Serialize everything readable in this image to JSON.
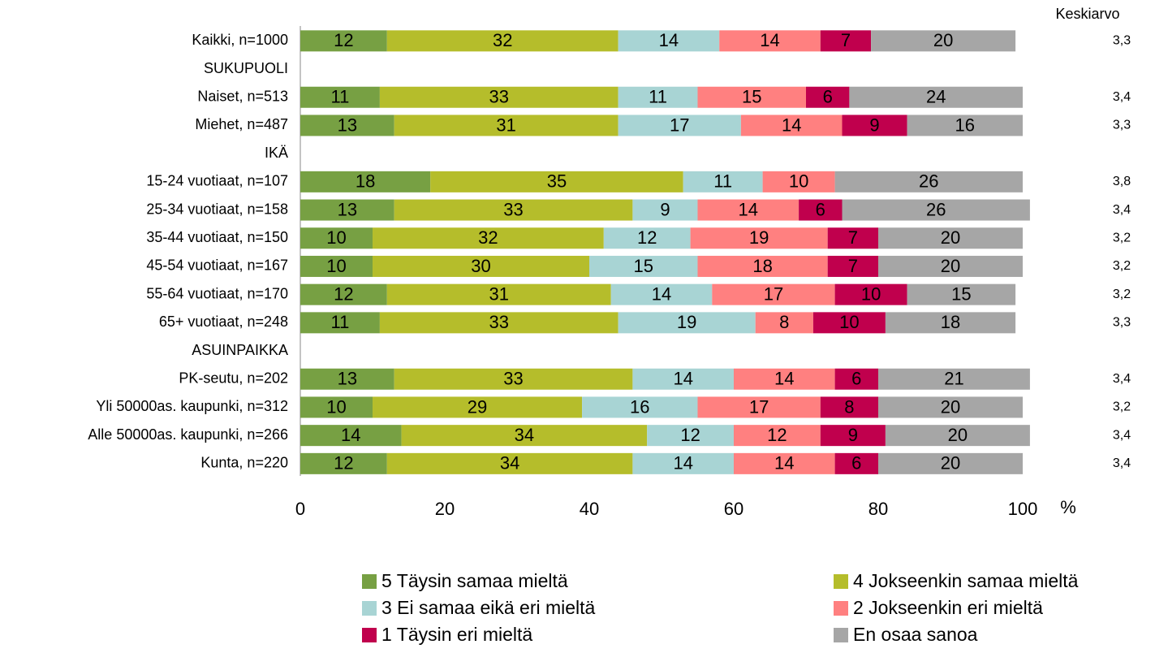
{
  "chart_data": {
    "type": "stacked-bar",
    "orientation": "horizontal",
    "categories": [
      "Kaikki, n=1000",
      "SUKUPUOLI",
      "Naiset, n=513",
      "Miehet, n=487",
      "IKÄ",
      "15-24 vuotiaat, n=107",
      "25-34 vuotiaat, n=158",
      "35-44 vuotiaat, n=150",
      "45-54 vuotiaat, n=167",
      "55-64 vuotiaat, n=170",
      "65+ vuotiaat, n=248",
      "ASUINPAIKKA",
      "PK-seutu, n=202",
      "Yli 50000as. kaupunki, n=312",
      "Alle 50000as. kaupunki, n=266",
      "Kunta, n=220"
    ],
    "series": [
      {
        "name": "5 Täysin samaa mieltä",
        "color": "#77a043",
        "values": [
          12,
          null,
          11,
          13,
          null,
          18,
          13,
          10,
          10,
          12,
          11,
          null,
          13,
          10,
          14,
          12
        ]
      },
      {
        "name": "4 Jokseenkin samaa mieltä",
        "color": "#b5bd2b",
        "values": [
          32,
          null,
          33,
          31,
          null,
          35,
          33,
          32,
          30,
          31,
          33,
          null,
          33,
          29,
          34,
          34
        ]
      },
      {
        "name": "3 Ei samaa eikä eri mieltä",
        "color": "#a8d4d4",
        "values": [
          14,
          null,
          11,
          17,
          null,
          11,
          9,
          12,
          15,
          14,
          19,
          null,
          14,
          16,
          12,
          14
        ]
      },
      {
        "name": "2 Jokseenkin eri mieltä",
        "color": "#ff8080",
        "values": [
          14,
          null,
          15,
          14,
          null,
          10,
          14,
          19,
          18,
          17,
          8,
          null,
          14,
          17,
          12,
          14
        ]
      },
      {
        "name": "1 Täysin eri mieltä",
        "color": "#c0004d",
        "values": [
          7,
          null,
          6,
          9,
          null,
          null,
          6,
          7,
          7,
          10,
          10,
          null,
          6,
          8,
          9,
          6
        ]
      },
      {
        "name": "En osaa sanoa",
        "color": "#a6a6a6",
        "values": [
          20,
          null,
          24,
          16,
          null,
          26,
          26,
          20,
          20,
          15,
          18,
          null,
          21,
          20,
          20,
          20
        ]
      }
    ],
    "mean_title": "Keskiarvo",
    "means": [
      {
        "value": 3.3,
        "label": "3,3"
      },
      null,
      {
        "value": 3.4,
        "label": "3,4"
      },
      {
        "value": 3.3,
        "label": "3,3"
      },
      null,
      {
        "value": 3.8,
        "label": "3,8"
      },
      {
        "value": 3.4,
        "label": "3,4"
      },
      {
        "value": 3.2,
        "label": "3,2"
      },
      {
        "value": 3.2,
        "label": "3,2"
      },
      {
        "value": 3.2,
        "label": "3,2"
      },
      {
        "value": 3.3,
        "label": "3,3"
      },
      null,
      {
        "value": 3.4,
        "label": "3,4"
      },
      {
        "value": 3.2,
        "label": "3,2"
      },
      {
        "value": 3.4,
        "label": "3,4"
      },
      {
        "value": 3.4,
        "label": "3,4"
      }
    ],
    "xlim": [
      0,
      100
    ],
    "xticks": [
      0,
      20,
      40,
      60,
      80,
      100
    ],
    "x_unit": "%",
    "legend": "bottom"
  }
}
